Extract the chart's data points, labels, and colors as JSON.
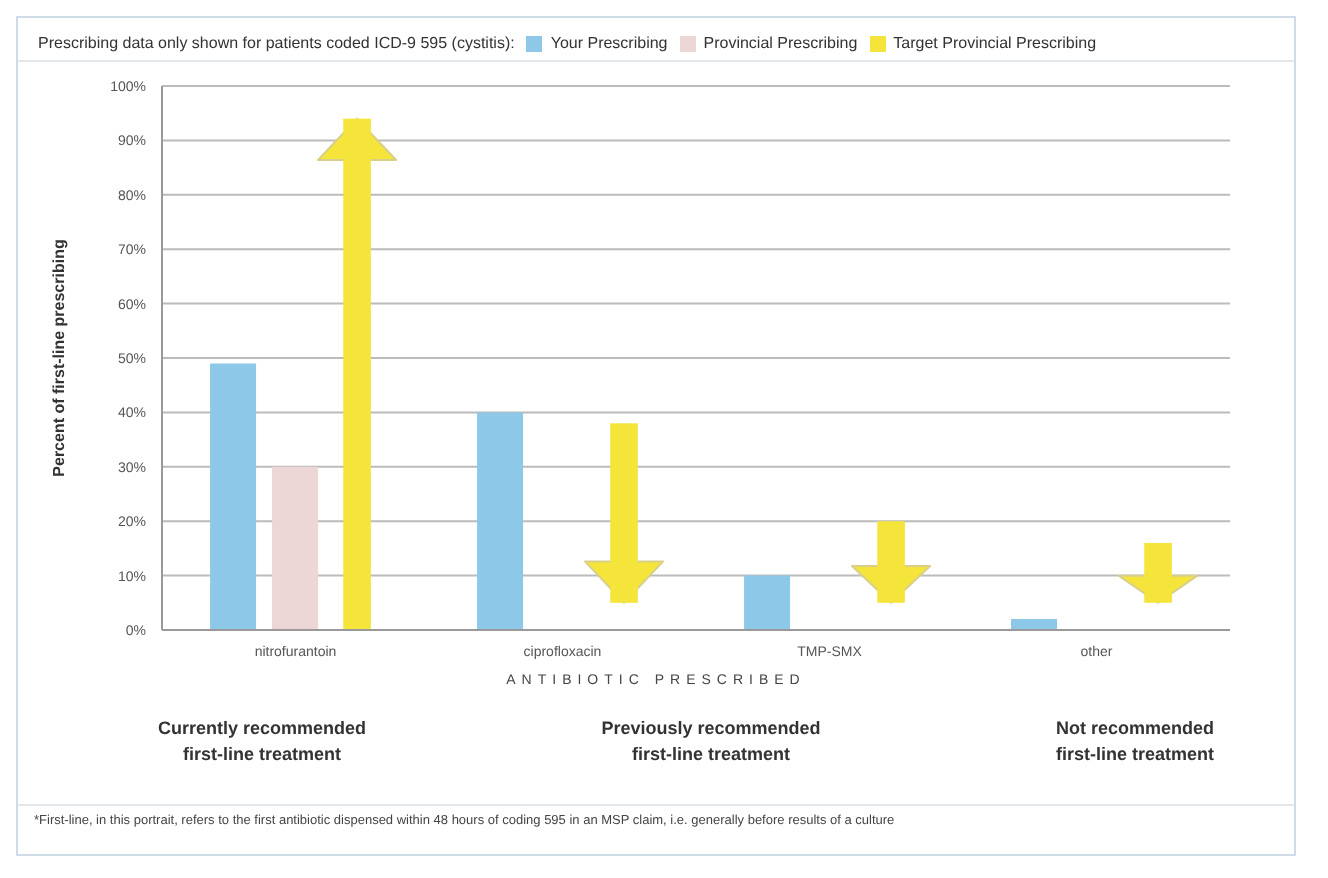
{
  "chart_data": {
    "type": "bar",
    "title": "Prescribing data only shown for patients coded ICD-9 595 (cystitis):",
    "categories": [
      "nitrofurantoin",
      "ciprofloxacin",
      "TMP-SMX",
      "other"
    ],
    "series": [
      {
        "name": "Your Prescribing",
        "color": "#8ec8e8",
        "values": [
          49,
          40,
          10,
          2
        ]
      },
      {
        "name": "Provincial Prescribing",
        "color": "#ecd6d6",
        "values": [
          30,
          null,
          null,
          null
        ]
      },
      {
        "name": "Target Provincial Prescribing",
        "color": "#f5e53a",
        "values": [
          94,
          33,
          15,
          11
        ],
        "base": [
          0,
          5,
          5,
          5
        ]
      }
    ],
    "ylabel": "Percent of first-line prescribing",
    "xlabel": "ANTIBIOTIC PRESCRIBED",
    "ylim": [
      0,
      100
    ],
    "yticks": [
      {
        "value": 0,
        "label": "0%"
      },
      {
        "value": 10,
        "label": "10%"
      },
      {
        "value": 20,
        "label": "20%"
      },
      {
        "value": 30,
        "label": "30%"
      },
      {
        "value": 40,
        "label": "40%"
      },
      {
        "value": 50,
        "label": "50%"
      },
      {
        "value": 60,
        "label": "60%"
      },
      {
        "value": 70,
        "label": "70%"
      },
      {
        "value": 80,
        "label": "80%"
      },
      {
        "value": 90,
        "label": "90%"
      },
      {
        "value": 100,
        "label": "100%"
      }
    ],
    "grid": "y",
    "legend": "top",
    "annotations": [
      "Currently recommended\nfirst-line treatment",
      "Previously recommended\nfirst-line treatment",
      "Not recommended\nfirst-line treatment",
      "*First-line, in this portrait, refers to the first antibiotic dispensed within 48 hours of coding 595 in an MSP claim, i.e. generally before results of a culture"
    ]
  }
}
